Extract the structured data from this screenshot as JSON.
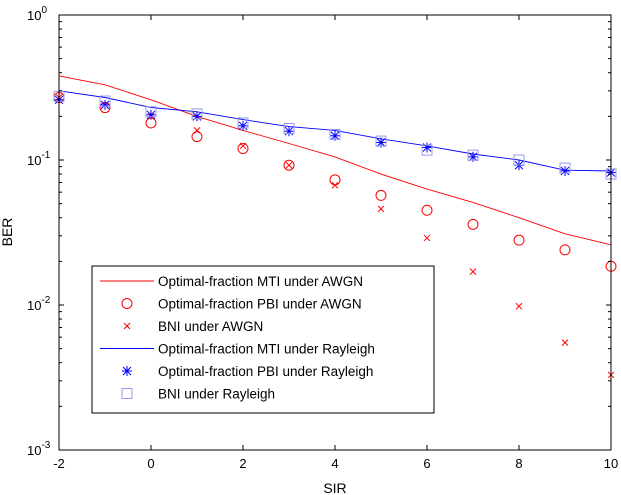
{
  "chart_data": {
    "type": "line",
    "xlabel": "SIR",
    "ylabel": "BER",
    "xlim": [
      -2,
      10
    ],
    "ylim": [
      0.001,
      1
    ],
    "yscale": "log",
    "x_ticks": [
      -2,
      0,
      2,
      4,
      6,
      8,
      10
    ],
    "y_ticks": [
      {
        "value": 1,
        "base": "10",
        "exp": "0"
      },
      {
        "value": 0.1,
        "base": "10",
        "exp": "-1"
      },
      {
        "value": 0.01,
        "base": "10",
        "exp": "-2"
      },
      {
        "value": 0.001,
        "base": "10",
        "exp": "-3"
      }
    ],
    "grid": false,
    "legend_position": "lower-left",
    "series": [
      {
        "name": "Optimal-fraction MTI under AWGN",
        "style": "line",
        "color": "#ff0000",
        "x": [
          -2,
          -1,
          0,
          1,
          2,
          3,
          4,
          5,
          6,
          7,
          8,
          9,
          10
        ],
        "y": [
          0.38,
          0.33,
          0.26,
          0.2,
          0.16,
          0.13,
          0.105,
          0.08,
          0.063,
          0.051,
          0.04,
          0.031,
          0.026
        ]
      },
      {
        "name": "Optimal-fraction PBI under AWGN",
        "style": "marker",
        "marker": "circle",
        "color": "#ff0000",
        "x": [
          -2,
          -1,
          0,
          1,
          2,
          3,
          4,
          5,
          6,
          7,
          8,
          9,
          10
        ],
        "y": [
          0.27,
          0.23,
          0.18,
          0.145,
          0.12,
          0.092,
          0.073,
          0.057,
          0.045,
          0.036,
          0.028,
          0.024,
          0.0185
        ]
      },
      {
        "name": "BNI under AWGN",
        "style": "marker",
        "marker": "x",
        "color": "#ff0000",
        "x": [
          -2,
          -1,
          0,
          1,
          2,
          3,
          4,
          5,
          6,
          7,
          8,
          9,
          10
        ],
        "y": [
          0.27,
          0.24,
          0.2,
          0.16,
          0.125,
          0.092,
          0.067,
          0.046,
          0.029,
          0.017,
          0.0098,
          0.0055,
          0.0033
        ]
      },
      {
        "name": "Optimal-fraction MTI under Rayleigh",
        "style": "line",
        "color": "#0000ff",
        "x": [
          -2,
          -1,
          0,
          1,
          2,
          3,
          4,
          5,
          6,
          7,
          8,
          9,
          10
        ],
        "y": [
          0.3,
          0.27,
          0.23,
          0.215,
          0.19,
          0.17,
          0.16,
          0.14,
          0.125,
          0.11,
          0.1,
          0.085,
          0.084
        ]
      },
      {
        "name": "Optimal-fraction PBI under Rayleigh",
        "style": "marker",
        "marker": "star",
        "color": "#0000ff",
        "x": [
          -2,
          -1,
          0,
          1,
          2,
          3,
          4,
          5,
          6,
          7,
          8,
          9,
          10
        ],
        "y": [
          0.26,
          0.24,
          0.205,
          0.2,
          0.172,
          0.158,
          0.147,
          0.132,
          0.122,
          0.105,
          0.092,
          0.084,
          0.082
        ]
      },
      {
        "name": "BNI under Rayleigh",
        "style": "marker",
        "marker": "square",
        "color": "#9999ee",
        "x": [
          -2,
          -1,
          0,
          1,
          2,
          3,
          4,
          5,
          6,
          7,
          8,
          9,
          10
        ],
        "y": [
          0.275,
          0.255,
          0.215,
          0.208,
          0.18,
          0.165,
          0.15,
          0.135,
          0.117,
          0.108,
          0.1,
          0.088,
          0.08
        ]
      }
    ]
  }
}
